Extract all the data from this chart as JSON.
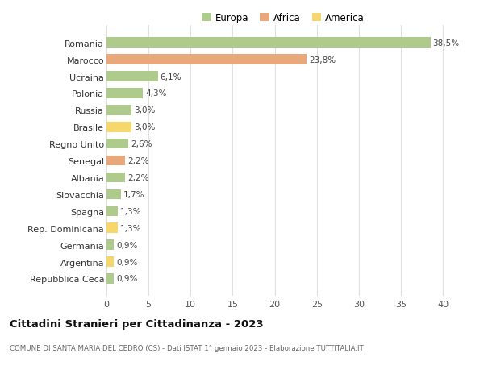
{
  "countries": [
    "Romania",
    "Marocco",
    "Ucraina",
    "Polonia",
    "Russia",
    "Brasile",
    "Regno Unito",
    "Senegal",
    "Albania",
    "Slovacchia",
    "Spagna",
    "Rep. Dominicana",
    "Germania",
    "Argentina",
    "Repubblica Ceca"
  ],
  "values": [
    38.5,
    23.8,
    6.1,
    4.3,
    3.0,
    3.0,
    2.6,
    2.2,
    2.2,
    1.7,
    1.3,
    1.3,
    0.9,
    0.9,
    0.9
  ],
  "labels": [
    "38,5%",
    "23,8%",
    "6,1%",
    "4,3%",
    "3,0%",
    "3,0%",
    "2,6%",
    "2,2%",
    "2,2%",
    "1,7%",
    "1,3%",
    "1,3%",
    "0,9%",
    "0,9%",
    "0,9%"
  ],
  "continents": [
    "Europa",
    "Africa",
    "Europa",
    "Europa",
    "Europa",
    "America",
    "Europa",
    "Africa",
    "Europa",
    "Europa",
    "Europa",
    "America",
    "Europa",
    "America",
    "Europa"
  ],
  "colors": {
    "Europa": "#aecb8d",
    "Africa": "#e8a87c",
    "America": "#f5d76e"
  },
  "title": "Cittadini Stranieri per Cittadinanza - 2023",
  "subtitle": "COMUNE DI SANTA MARIA DEL CEDRO (CS) - Dati ISTAT 1° gennaio 2023 - Elaborazione TUTTITALIA.IT",
  "xlim": [
    0,
    42
  ],
  "xticks": [
    0,
    5,
    10,
    15,
    20,
    25,
    30,
    35,
    40
  ],
  "background_color": "#ffffff",
  "grid_color": "#e0e0e0"
}
